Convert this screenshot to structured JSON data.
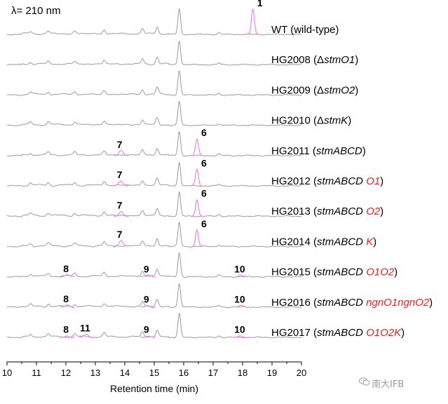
{
  "wavelength_label": "λ= 210 nm",
  "watermark_text": "南大IFB",
  "watermark_icon": "wechat-icon",
  "colors": {
    "trace": "#9a9a9a",
    "highlight": "#ee82ee",
    "axis": "#000000",
    "red_text": "#e8211e"
  },
  "chart_data": {
    "type": "line",
    "title": "",
    "xlabel": "Retention time (min)",
    "ylabel": "",
    "xlim": [
      10,
      20
    ],
    "xticks": [
      "10",
      "11",
      "12",
      "13",
      "14",
      "15",
      "16",
      "17",
      "18",
      "19",
      "20"
    ],
    "grid": false,
    "legend": "none",
    "series": [
      {
        "name": "WT (wild-type)",
        "label_parts": [
          {
            "t": "WT (wild-type)",
            "i": false,
            "red": false
          }
        ],
        "peaks": [
          {
            "label": "1",
            "x": 18.35,
            "height": 0.95
          }
        ]
      },
      {
        "name": "HG2008 (ΔstmO1)",
        "label_parts": [
          {
            "t": "HG2008 (Δ",
            "i": false,
            "red": false
          },
          {
            "t": "stmO1",
            "i": true,
            "red": false
          },
          {
            "t": ")",
            "i": false,
            "red": false
          }
        ],
        "peaks": []
      },
      {
        "name": "HG2009 (ΔstmO2)",
        "label_parts": [
          {
            "t": "HG2009 (Δ",
            "i": false,
            "red": false
          },
          {
            "t": "stmO2",
            "i": true,
            "red": false
          },
          {
            "t": ")",
            "i": false,
            "red": false
          }
        ],
        "peaks": []
      },
      {
        "name": "HG2010 (ΔstmK)",
        "label_parts": [
          {
            "t": "HG2010 (Δ",
            "i": false,
            "red": false
          },
          {
            "t": "stmK",
            "i": true,
            "red": false
          },
          {
            "t": ")",
            "i": false,
            "red": false
          }
        ],
        "peaks": []
      },
      {
        "name": "HG2011 (stmABCD)",
        "label_parts": [
          {
            "t": "HG2011 (",
            "i": false,
            "red": false
          },
          {
            "t": "stmABCD",
            "i": true,
            "red": false
          },
          {
            "t": ")",
            "i": false,
            "red": false
          }
        ],
        "peaks": [
          {
            "label": "7",
            "x": 13.87,
            "height": 0.18
          },
          {
            "label": "6",
            "x": 16.45,
            "height": 0.62
          }
        ]
      },
      {
        "name": "HG2012 (stmABCD O1)",
        "label_parts": [
          {
            "t": "HG2012 (",
            "i": false,
            "red": false
          },
          {
            "t": "stmABCD ",
            "i": true,
            "red": false
          },
          {
            "t": "O1",
            "i": true,
            "red": true
          },
          {
            "t": ")",
            "i": false,
            "red": false
          }
        ],
        "peaks": [
          {
            "label": "7",
            "x": 13.87,
            "height": 0.18
          },
          {
            "label": "6",
            "x": 16.45,
            "height": 0.62
          }
        ]
      },
      {
        "name": "HG2013 (stmABCD O2)",
        "label_parts": [
          {
            "t": "HG2013 (",
            "i": false,
            "red": false
          },
          {
            "t": "stmABCD ",
            "i": true,
            "red": false
          },
          {
            "t": "O2",
            "i": true,
            "red": true
          },
          {
            "t": ")",
            "i": false,
            "red": false
          }
        ],
        "peaks": [
          {
            "label": "7",
            "x": 13.87,
            "height": 0.18
          },
          {
            "label": "6",
            "x": 16.45,
            "height": 0.62
          }
        ]
      },
      {
        "name": "HG2014 (stmABCD K)",
        "label_parts": [
          {
            "t": "HG2014 (",
            "i": false,
            "red": false
          },
          {
            "t": "stmABCD ",
            "i": true,
            "red": false
          },
          {
            "t": "K",
            "i": true,
            "red": true
          },
          {
            "t": ")",
            "i": false,
            "red": false
          }
        ],
        "peaks": [
          {
            "label": "7",
            "x": 13.87,
            "height": 0.22
          },
          {
            "label": "6",
            "x": 16.45,
            "height": 0.62
          }
        ]
      },
      {
        "name": "HG2015 (stmABCD O1O2)",
        "label_parts": [
          {
            "t": "HG2015 (",
            "i": false,
            "red": false
          },
          {
            "t": "stmABCD ",
            "i": true,
            "red": false
          },
          {
            "t": "O1O2",
            "i": true,
            "red": true
          },
          {
            "t": ")",
            "i": false,
            "red": false
          }
        ],
        "peaks": [
          {
            "label": "8",
            "x": 12.05,
            "height": 0.07
          },
          {
            "label": "9",
            "x": 14.78,
            "height": 0.06
          },
          {
            "label": "10",
            "x": 17.95,
            "height": 0.06
          }
        ]
      },
      {
        "name": "HG2016 (stmABCD ngnO1ngnO2)",
        "label_parts": [
          {
            "t": "HG2016 (",
            "i": false,
            "red": false
          },
          {
            "t": "stmABCD ",
            "i": true,
            "red": false
          },
          {
            "t": "ngnO1ngnO2",
            "i": true,
            "red": true
          },
          {
            "t": ")",
            "i": false,
            "red": false
          }
        ],
        "peaks": [
          {
            "label": "8",
            "x": 12.05,
            "height": 0.07
          },
          {
            "label": "9",
            "x": 14.78,
            "height": 0.06
          },
          {
            "label": "10",
            "x": 17.95,
            "height": 0.06
          }
        ]
      },
      {
        "name": "HG2017 (stmABCD O1O2K)",
        "label_parts": [
          {
            "t": "HG2017 (",
            "i": false,
            "red": false
          },
          {
            "t": "stmABCD ",
            "i": true,
            "red": false
          },
          {
            "t": "O1O2K",
            "i": true,
            "red": true
          },
          {
            "t": ")",
            "i": false,
            "red": false
          }
        ],
        "peaks": [
          {
            "label": "8",
            "x": 12.05,
            "height": 0.06
          },
          {
            "label": "11",
            "x": 12.7,
            "height": 0.12
          },
          {
            "label": "9",
            "x": 14.78,
            "height": 0.06
          },
          {
            "label": "10",
            "x": 17.95,
            "height": 0.06
          }
        ]
      }
    ],
    "common_peaks": [
      {
        "x": 15.85,
        "height": 0.9
      },
      {
        "x": 15.1,
        "height": 0.26
      },
      {
        "x": 14.6,
        "height": 0.18
      },
      {
        "x": 13.3,
        "height": 0.14
      },
      {
        "x": 12.3,
        "height": 0.1
      },
      {
        "x": 11.4,
        "height": 0.1
      },
      {
        "x": 10.8,
        "height": 0.08
      },
      {
        "x": 17.2,
        "height": 0.06
      }
    ]
  }
}
